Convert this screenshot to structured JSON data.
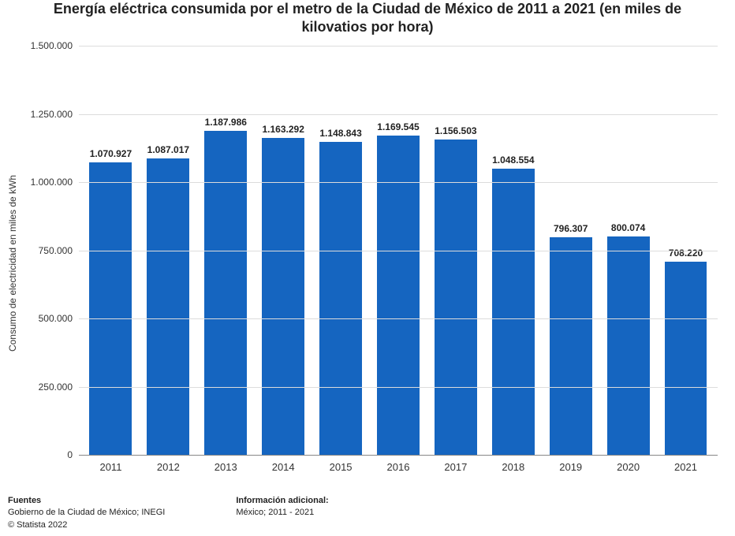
{
  "chart": {
    "type": "bar",
    "title": "Energía eléctrica consumida por el metro de la Ciudad de México de 2011 a 2021 (en miles de kilovatios por hora)",
    "title_fontsize": 18,
    "ylabel": "Consumo de electricidad en miles de kWh",
    "categories": [
      "2011",
      "2012",
      "2013",
      "2014",
      "2015",
      "2016",
      "2017",
      "2018",
      "2019",
      "2020",
      "2021"
    ],
    "values": [
      1070927,
      1087017,
      1187986,
      1163292,
      1148843,
      1169545,
      1156503,
      1048554,
      796307,
      800074,
      708220
    ],
    "value_labels": [
      "1.070.927",
      "1.087.017",
      "1.187.986",
      "1.163.292",
      "1.148.843",
      "1.169.545",
      "1.156.503",
      "1.048.554",
      "796.307",
      "800.074",
      "708.220"
    ],
    "bar_color": "#1565c0",
    "ylim": [
      0,
      1500000
    ],
    "ytick_step": 250000,
    "ytick_labels": [
      "0",
      "250.000",
      "500.000",
      "750.000",
      "1.000.000",
      "1.250.000",
      "1.500.000"
    ],
    "background_color": "#ffffff",
    "grid_color": "#dcdcdc",
    "axis_color": "#888888",
    "bar_width_ratio": 0.74,
    "label_fontsize": 12,
    "label_color": "#222222",
    "tick_fontsize": 12
  },
  "footer": {
    "sources_head": "Fuentes",
    "sources_line": "Gobierno de la Ciudad de México; INEGI",
    "copyright": "© Statista 2022",
    "info_head": "Información adicional:",
    "info_line": "México; 2011 - 2021"
  }
}
